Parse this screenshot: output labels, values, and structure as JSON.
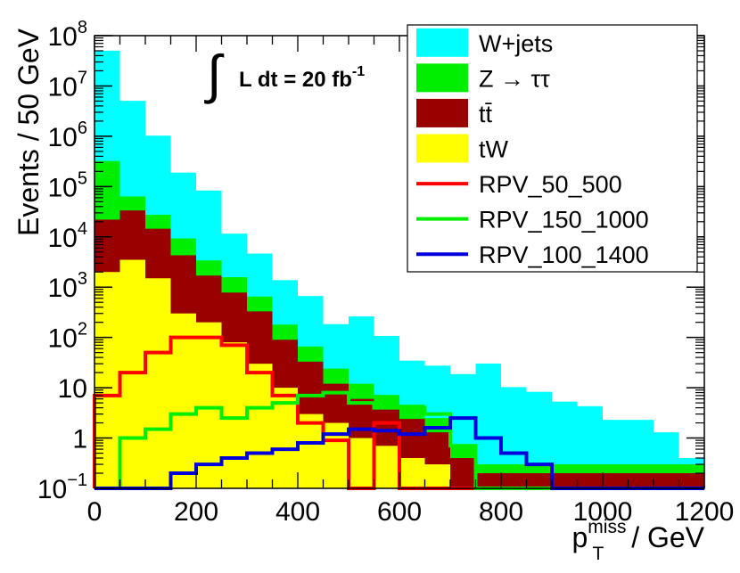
{
  "chart_data": {
    "type": "bar",
    "title": "",
    "xlabel": {
      "base": "p",
      "sub": "T",
      "sup": "miss",
      "rest": " / GeV"
    },
    "ylabel": "Events / 50 GeV",
    "annotation": {
      "integral": "∫",
      "text": "L dt = 20 fb",
      "sup": "-1"
    },
    "x_bin_edges": [
      0,
      50,
      100,
      150,
      200,
      250,
      300,
      350,
      400,
      450,
      500,
      550,
      600,
      650,
      700,
      750,
      800,
      850,
      900,
      950,
      1000,
      1050,
      1100,
      1150,
      1200
    ],
    "xlim": [
      0,
      1200
    ],
    "ylim": [
      0.1,
      100000000
    ],
    "yscale": "log",
    "x_ticks": [
      "0",
      "200",
      "400",
      "600",
      "800",
      "1000",
      "1200"
    ],
    "y_ticks": [
      {
        "base": "10",
        "sup": "−1"
      },
      {
        "base": "1",
        "sup": ""
      },
      {
        "base": "10",
        "sup": ""
      },
      {
        "base": "10",
        "sup": "2"
      },
      {
        "base": "10",
        "sup": "3"
      },
      {
        "base": "10",
        "sup": "4"
      },
      {
        "base": "10",
        "sup": "5"
      },
      {
        "base": "10",
        "sup": "6"
      },
      {
        "base": "10",
        "sup": "7"
      },
      {
        "base": "10",
        "sup": "8"
      }
    ],
    "stacked": [
      {
        "name": "tW",
        "label": "tW",
        "color": "#ffff00",
        "values": [
          2000,
          3500,
          1500,
          300,
          200,
          80,
          30,
          10,
          3,
          2,
          1,
          0.7,
          0.4,
          0.3,
          0.1,
          0.1,
          0.1,
          0.1,
          0.1,
          0.1,
          0.1,
          0.1,
          0.1,
          0.1
        ]
      },
      {
        "name": "ttbar",
        "label": "tt̄",
        "color": "#990000",
        "values": [
          20000,
          30000,
          13000,
          4000,
          1500,
          700,
          300,
          80,
          30,
          10,
          5,
          3,
          2,
          1,
          0.3,
          0.1,
          0.1,
          0.1,
          0.1,
          0.1,
          0.1,
          0.1,
          0.1,
          0.1
        ]
      },
      {
        "name": "ztautau",
        "label": "Z → ττ",
        "color": "#00ee00",
        "values": [
          300000,
          30000,
          13000,
          5000,
          1700,
          800,
          320,
          90,
          33,
          12,
          6,
          3.5,
          2.2,
          1.2,
          0.3,
          0.1,
          0.1,
          0.1,
          0.1,
          0.1,
          0.1,
          0.1,
          0.1,
          0.1
        ]
      },
      {
        "name": "wjets",
        "label": "W+jets",
        "color": "#00ffff",
        "values": [
          50000000,
          5000000,
          1000000,
          180000,
          80000,
          10000,
          4000,
          1200,
          600,
          160,
          250,
          100,
          30,
          25,
          18,
          30,
          10,
          8,
          5,
          4,
          2,
          2,
          1,
          0.1
        ]
      }
    ],
    "lines": [
      {
        "name": "RPV_50_500",
        "label": "RPV_50_500",
        "color": "#ff0000",
        "values": [
          7,
          20,
          50,
          100,
          100,
          70,
          20,
          7,
          2,
          0.9,
          0.1,
          2,
          0.1,
          0.1,
          0.1,
          0.1,
          0.1,
          0.1,
          0.1,
          0.1,
          0.1,
          0.1,
          0.1,
          0.1
        ]
      },
      {
        "name": "RPV_150_1000",
        "label": "RPV_150_1000",
        "color": "#00ee00",
        "values": [
          0.1,
          1,
          1.5,
          3,
          4,
          2.5,
          4,
          5,
          7,
          8,
          5,
          4,
          4,
          3,
          0.7,
          0.1,
          0.1,
          0.1,
          0.1,
          0.1,
          0.1,
          0.1,
          0.1,
          0.1
        ]
      },
      {
        "name": "RPV_100_1400",
        "label": "RPV_100_1400",
        "color": "#0000dd",
        "values": [
          0.1,
          0.1,
          0.1,
          0.2,
          0.3,
          0.4,
          0.5,
          0.6,
          0.8,
          1.2,
          1.5,
          1.4,
          1.2,
          1.6,
          2.5,
          1,
          0.5,
          0.3,
          0.1,
          0.1,
          0.1,
          0.1,
          0.1,
          0.1
        ]
      }
    ],
    "legend": {
      "placement": "top-right",
      "entries": [
        {
          "label": "W+jets",
          "color": "#00ffff",
          "kind": "fill"
        },
        {
          "label": "Z → ττ",
          "color": "#00ee00",
          "kind": "fill"
        },
        {
          "label": "tt̄",
          "color": "#990000",
          "kind": "fill"
        },
        {
          "label": "tW",
          "color": "#ffff00",
          "kind": "fill"
        },
        {
          "label": "RPV_50_500",
          "color": "#ff0000",
          "kind": "line"
        },
        {
          "label": "RPV_150_1000",
          "color": "#00ee00",
          "kind": "line"
        },
        {
          "label": "RPV_100_1400",
          "color": "#0000dd",
          "kind": "line"
        }
      ]
    }
  }
}
